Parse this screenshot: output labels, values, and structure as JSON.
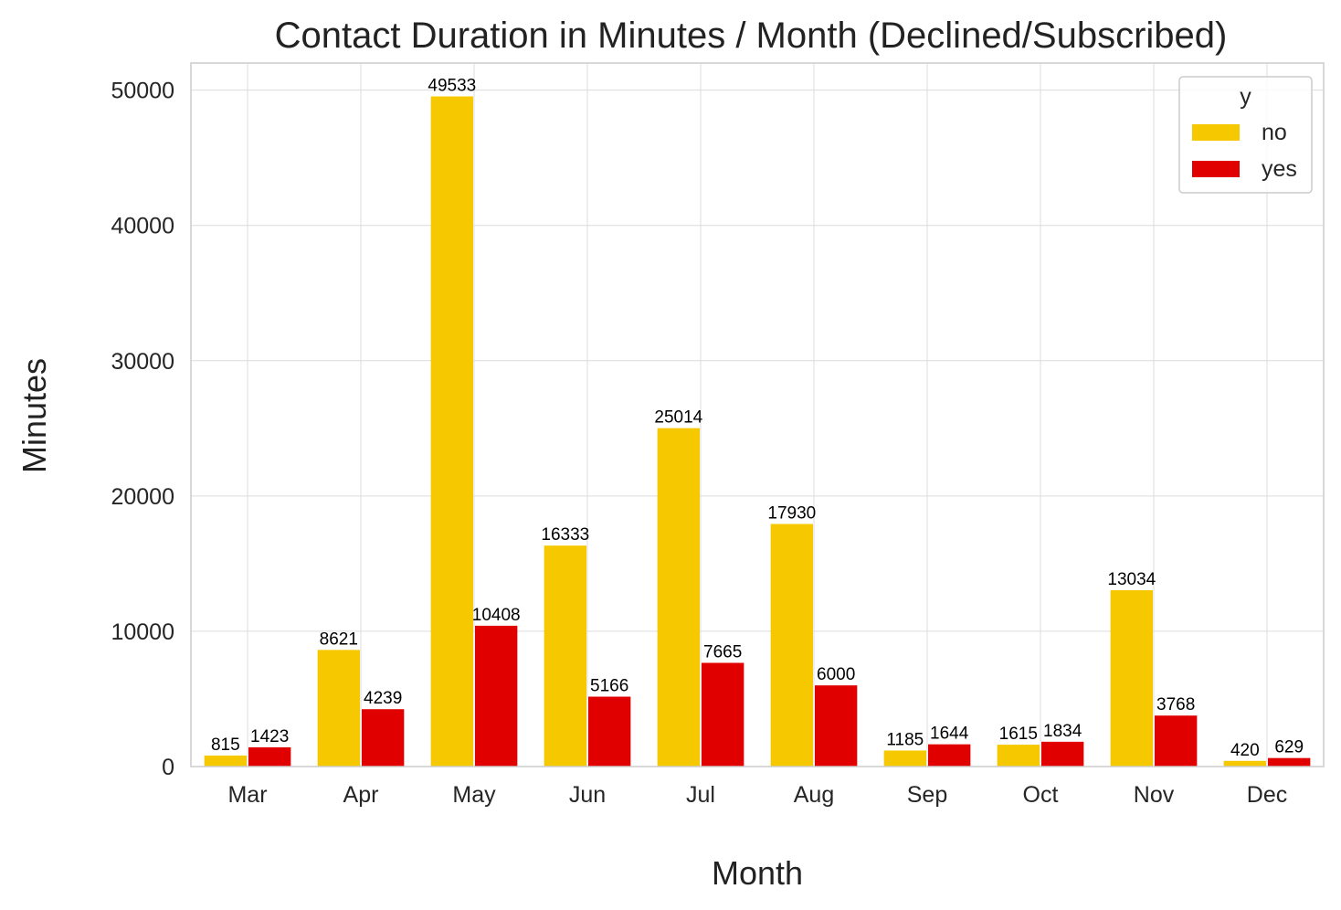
{
  "chart_data": {
    "type": "bar",
    "title": "Contact Duration in Minutes / Month (Declined/Subscribed)",
    "xlabel": "Month",
    "ylabel": "Minutes",
    "categories": [
      "Mar",
      "Apr",
      "May",
      "Jun",
      "Jul",
      "Aug",
      "Sep",
      "Oct",
      "Nov",
      "Dec"
    ],
    "series": [
      {
        "name": "no",
        "color": "#f6c800",
        "values": [
          815,
          8621,
          49533,
          16333,
          25014,
          17930,
          1185,
          1615,
          13034,
          420
        ]
      },
      {
        "name": "yes",
        "color": "#e00000",
        "values": [
          1423,
          4239,
          10408,
          5166,
          7665,
          6000,
          1644,
          1834,
          3768,
          629
        ]
      }
    ],
    "ylim": [
      0,
      52000
    ],
    "yticks": [
      0,
      10000,
      20000,
      30000,
      40000,
      50000
    ],
    "grid": true,
    "legend": {
      "title": "y",
      "placement": "top-right"
    }
  }
}
